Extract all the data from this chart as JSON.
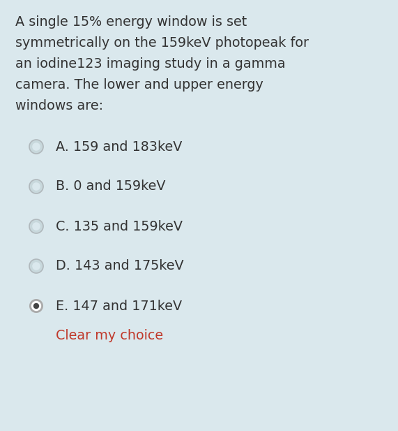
{
  "background_color": "#dae8ed",
  "question_text_lines": [
    "A single 15% energy window is set",
    "symmetrically on the 159keV photopeak for",
    "an iodine123 imaging study in a gamma",
    "camera. The lower and upper energy",
    "windows are:"
  ],
  "options": [
    {
      "label": "A.",
      "text": "159 and 183keV",
      "selected": false
    },
    {
      "label": "B.",
      "text": "0 and 159keV",
      "selected": false
    },
    {
      "label": "C.",
      "text": "135 and 159keV",
      "selected": false
    },
    {
      "label": "D.",
      "text": "143 and 175keV",
      "selected": false
    },
    {
      "label": "E.",
      "text": "147 and 171keV",
      "selected": true
    }
  ],
  "clear_text": "Clear my choice",
  "clear_color": "#c0392b",
  "question_fontsize": 13.8,
  "option_fontsize": 13.8,
  "clear_fontsize": 13.8,
  "text_color": "#333333",
  "fig_width": 5.71,
  "fig_height": 6.17,
  "dpi": 100
}
